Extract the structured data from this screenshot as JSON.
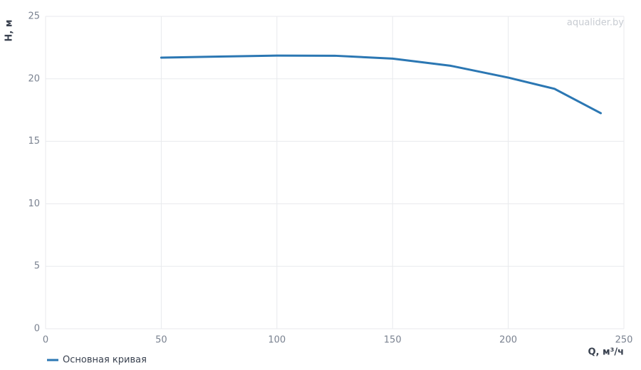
{
  "chart_data": {
    "type": "line",
    "x_label": "Q, м³/ч",
    "y_label": "H, м",
    "watermark": "aqualider.by",
    "x": [
      50,
      75,
      100,
      125,
      150,
      175,
      200,
      220,
      240
    ],
    "series": [
      {
        "name": "Основная кривая",
        "color": "#2b77b3",
        "values": [
          21.7,
          21.78,
          21.86,
          21.85,
          21.62,
          21.05,
          20.1,
          19.2,
          17.25
        ]
      }
    ],
    "xlim": [
      0,
      250
    ],
    "xticks": [
      0,
      50,
      100,
      150,
      200,
      250
    ],
    "ylim": [
      0,
      25
    ],
    "yticks": [
      0,
      5,
      10,
      15,
      20,
      25
    ],
    "grid": true,
    "legend": "bottom-left"
  }
}
